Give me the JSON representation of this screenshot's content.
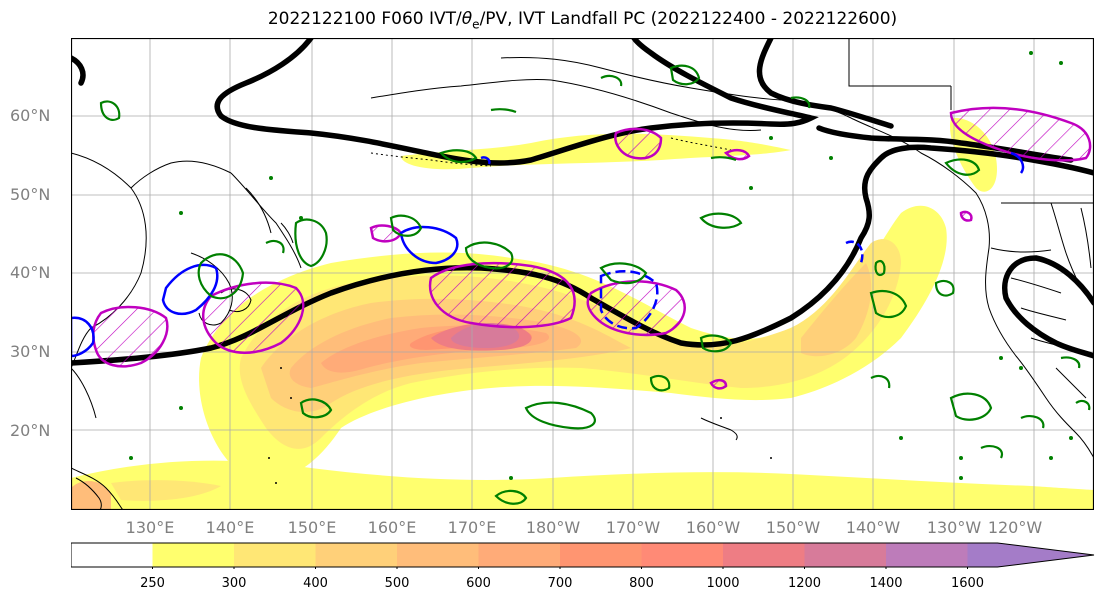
{
  "figure": {
    "title_pre": "2022122100 F060 IVT/",
    "title_theta": "θ",
    "title_sub": "e",
    "title_post": "/PV, IVT Landfall PC (2022122400 - 2022122600)"
  },
  "axes": {
    "lat_labels": [
      "60°N",
      "50°N",
      "40°N",
      "30°N",
      "20°N"
    ],
    "lon_labels": [
      "130°E",
      "140°E",
      "150°E",
      "160°E",
      "170°E",
      "180°W",
      "170°W",
      "160°W",
      "150°W",
      "140°W",
      "130°W",
      "120°W"
    ]
  },
  "colorbar": {
    "ticks": [
      "250",
      "300",
      "400",
      "500",
      "600",
      "700",
      "800",
      "1000",
      "1200",
      "1400",
      "1600"
    ],
    "colors": [
      "#ffffff",
      "#ffff6e",
      "#ffe775",
      "#ffd079",
      "#ffbd7a",
      "#ffab78",
      "#ff9571",
      "#ff8a76",
      "#ee7d84",
      "#d77b9a",
      "#bd7cba",
      "#a47cc8"
    ]
  },
  "colors": {
    "theta_e_contour": "#000000",
    "pv_positive": "#008000",
    "pc_positive": "#c000c0",
    "pc_negative": "#0000ff",
    "grid": "#aaaaaa",
    "tick_labels": "#808080"
  }
}
